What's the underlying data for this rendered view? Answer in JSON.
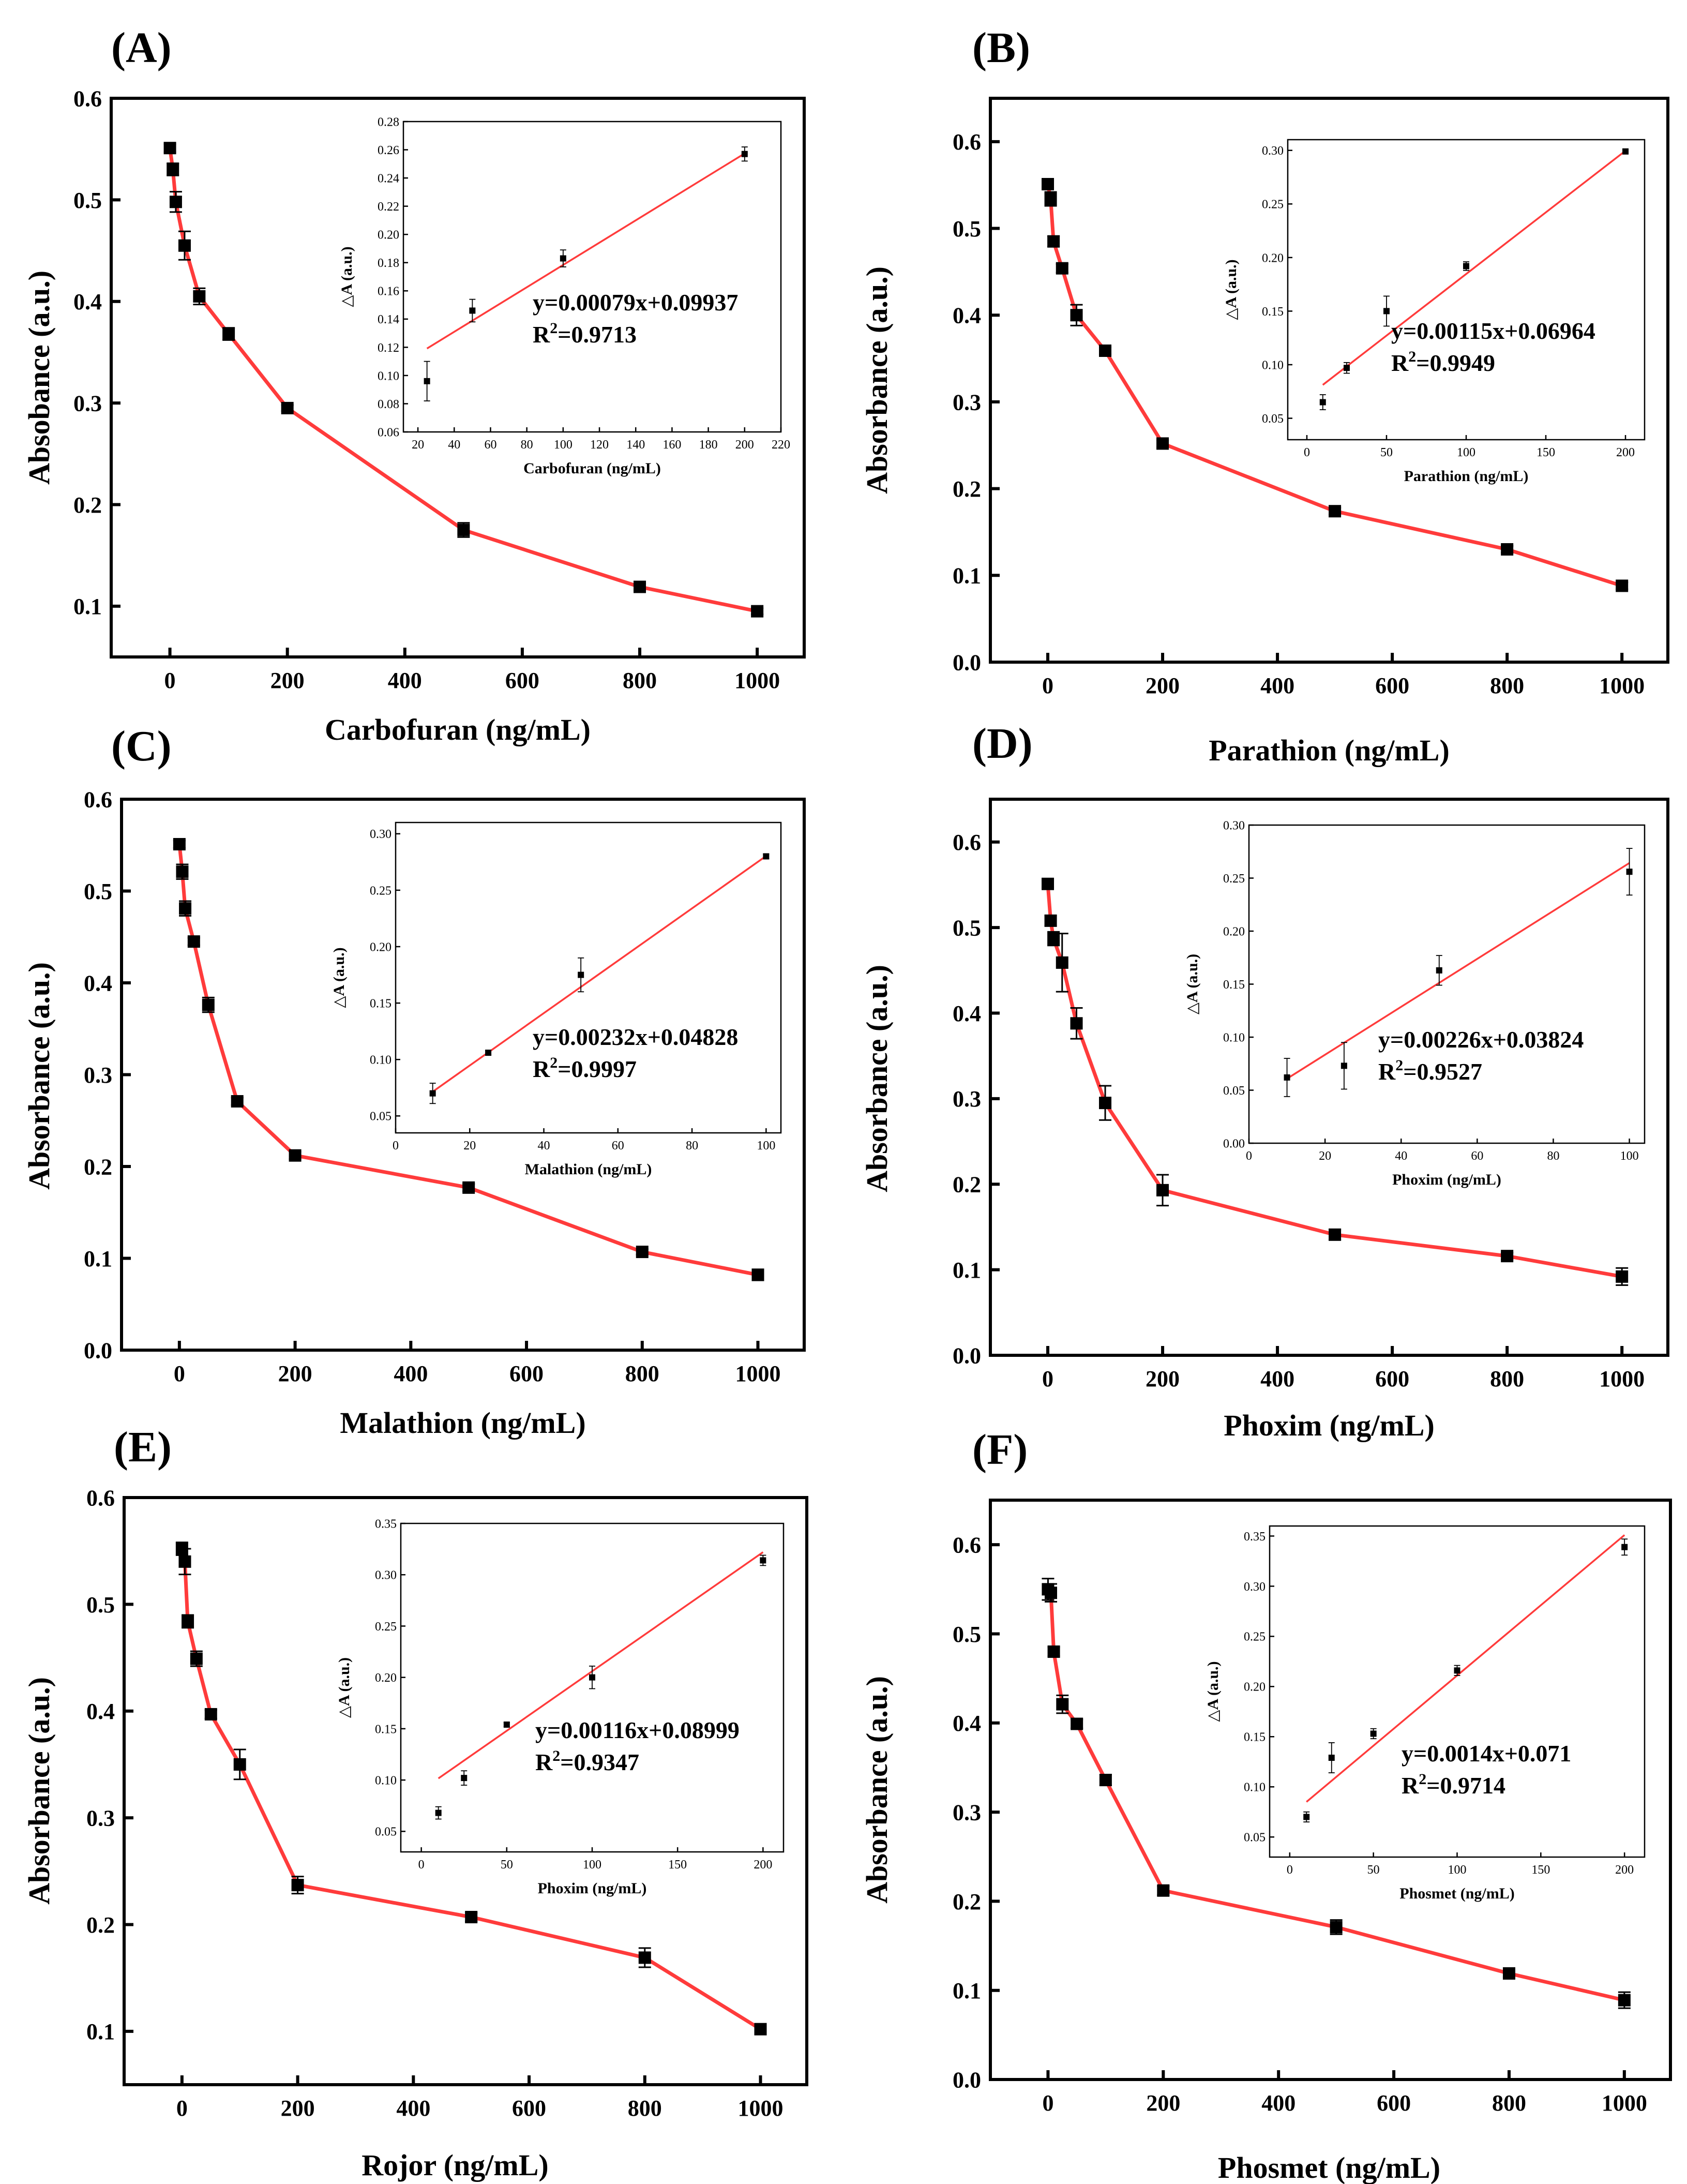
{
  "chart_data": [
    {
      "panel": "(A)",
      "type": "line",
      "xlabel": "Carbofuran (ng/mL)",
      "ylabel": "Absobance (a.u.)",
      "xlim": [
        -100,
        1080
      ],
      "ylim": [
        0.05,
        0.6
      ],
      "xticks": [
        0,
        200,
        400,
        600,
        800,
        1000
      ],
      "yticks": [
        0.1,
        0.2,
        0.3,
        0.4,
        0.5,
        0.6
      ],
      "x": [
        0,
        5,
        10,
        25,
        50,
        100,
        200,
        500,
        800,
        1000
      ],
      "y": [
        0.551,
        0.53,
        0.498,
        0.455,
        0.405,
        0.368,
        0.295,
        0.175,
        0.119,
        0.095
      ],
      "err": [
        0.004,
        0.006,
        0.01,
        0.014,
        0.008,
        0.006,
        0.003,
        0.007,
        0.003,
        0.003
      ],
      "inset": {
        "type": "scatter",
        "xlabel": "Carbofuran (ng/mL)",
        "ylabel": "△A (a.u.)",
        "xlim": [
          12,
          220
        ],
        "ylim": [
          0.06,
          0.28
        ],
        "xticks": [
          20,
          40,
          60,
          80,
          100,
          120,
          140,
          160,
          180,
          200,
          220
        ],
        "yticks": [
          0.06,
          0.08,
          0.1,
          0.12,
          0.14,
          0.16,
          0.18,
          0.2,
          0.22,
          0.24,
          0.26,
          0.28
        ],
        "x": [
          25,
          50,
          100,
          200
        ],
        "y": [
          0.096,
          0.146,
          0.183,
          0.257
        ],
        "err": [
          0.014,
          0.008,
          0.006,
          0.005
        ],
        "fit": {
          "slope": 0.00079,
          "intercept": 0.09937,
          "x_range": [
            25,
            200
          ]
        },
        "equation": "y=0.00079x+0.09937",
        "r2_prefix": "R",
        "r2_sup": "2",
        "r2_value": "=0.9713"
      }
    },
    {
      "panel": "(B)",
      "type": "line",
      "xlabel": "Parathion (ng/mL)",
      "ylabel": "Absorbance (a.u.)",
      "xlim": [
        -100,
        1080
      ],
      "ylim": [
        0.0,
        0.65
      ],
      "xticks": [
        0,
        200,
        400,
        600,
        800,
        1000
      ],
      "yticks": [
        0.0,
        0.1,
        0.2,
        0.3,
        0.4,
        0.5,
        0.6
      ],
      "x": [
        0,
        5,
        10,
        25,
        50,
        100,
        200,
        500,
        800,
        1000
      ],
      "y": [
        0.551,
        0.534,
        0.485,
        0.454,
        0.4,
        0.359,
        0.252,
        0.174,
        0.13,
        0.088
      ],
      "err": [
        0.004,
        0.008,
        0.006,
        0.005,
        0.012,
        0.004,
        0.004,
        0.004,
        0.004,
        0.004
      ],
      "inset": {
        "type": "scatter",
        "xlabel": "Parathion (ng/mL)",
        "ylabel": "△A (a.u.)",
        "xlim": [
          -12,
          212
        ],
        "ylim": [
          0.03,
          0.31
        ],
        "xticks": [
          0,
          50,
          100,
          150,
          200
        ],
        "yticks": [
          0.05,
          0.1,
          0.15,
          0.2,
          0.25,
          0.3
        ],
        "x": [
          10,
          25,
          50,
          100,
          200
        ],
        "y": [
          0.065,
          0.097,
          0.15,
          0.192,
          0.299
        ],
        "err": [
          0.007,
          0.005,
          0.014,
          0.004,
          0.002
        ],
        "fit": {
          "slope": 0.00115,
          "intercept": 0.06964,
          "x_range": [
            10,
            200
          ]
        },
        "equation": "y=0.00115x+0.06964",
        "r2_prefix": "R",
        "r2_sup": "2",
        "r2_value": "=0.9949"
      }
    },
    {
      "panel": "(C)",
      "type": "line",
      "xlabel": "Malathion (ng/mL)",
      "ylabel": "Absorbance (a.u.)",
      "xlim": [
        -100,
        1080
      ],
      "ylim": [
        0.0,
        0.6
      ],
      "xticks": [
        0,
        200,
        400,
        600,
        800,
        1000
      ],
      "yticks": [
        0.0,
        0.1,
        0.2,
        0.3,
        0.4,
        0.5,
        0.6
      ],
      "x": [
        0,
        5,
        10,
        25,
        50,
        100,
        200,
        500,
        800,
        1000
      ],
      "y": [
        0.551,
        0.521,
        0.481,
        0.445,
        0.376,
        0.271,
        0.212,
        0.177,
        0.107,
        0.082
      ],
      "err": [
        0.004,
        0.008,
        0.008,
        0.004,
        0.008,
        0.004,
        0.004,
        0.004,
        0.003,
        0.006
      ],
      "inset": {
        "type": "scatter",
        "xlabel": "Malathion (ng/mL)",
        "ylabel": "△A (a.u.)",
        "xlim": [
          0,
          104
        ],
        "ylim": [
          0.035,
          0.31
        ],
        "xticks": [
          0,
          20,
          40,
          60,
          80,
          100
        ],
        "yticks": [
          0.05,
          0.1,
          0.15,
          0.2,
          0.25,
          0.3
        ],
        "x": [
          10,
          25,
          50,
          100
        ],
        "y": [
          0.07,
          0.106,
          0.175,
          0.28
        ],
        "err": [
          0.009,
          0.002,
          0.015,
          0.002
        ],
        "fit": {
          "slope": 0.00232,
          "intercept": 0.04828,
          "x_range": [
            10,
            100
          ]
        },
        "equation": "y=0.00232x+0.04828",
        "r2_prefix": "R",
        "r2_sup": "2",
        "r2_value": "=0.9997"
      }
    },
    {
      "panel": "(D)",
      "type": "line",
      "xlabel": "Phoxim (ng/mL)",
      "ylabel": "Absorbance (a.u.)",
      "xlim": [
        -100,
        1080
      ],
      "ylim": [
        0.0,
        0.65
      ],
      "xticks": [
        0,
        200,
        400,
        600,
        800,
        1000
      ],
      "yticks": [
        0.0,
        0.1,
        0.2,
        0.3,
        0.4,
        0.5,
        0.6
      ],
      "x": [
        0,
        5,
        10,
        25,
        50,
        100,
        200,
        500,
        800,
        1000
      ],
      "y": [
        0.551,
        0.508,
        0.487,
        0.459,
        0.388,
        0.295,
        0.193,
        0.141,
        0.116,
        0.092
      ],
      "err": [
        0.004,
        0.006,
        0.008,
        0.034,
        0.018,
        0.02,
        0.018,
        0.006,
        0.004,
        0.01
      ],
      "inset": {
        "type": "scatter",
        "xlabel": "Phoxim (ng/mL)",
        "ylabel": "△A (a.u.)",
        "xlim": [
          0,
          104
        ],
        "ylim": [
          0.0,
          0.3
        ],
        "xticks": [
          0,
          20,
          40,
          60,
          80,
          100
        ],
        "yticks": [
          0.0,
          0.05,
          0.1,
          0.15,
          0.2,
          0.25,
          0.3
        ],
        "x": [
          10,
          25,
          50,
          100
        ],
        "y": [
          0.062,
          0.073,
          0.163,
          0.256
        ],
        "err": [
          0.018,
          0.022,
          0.014,
          0.022
        ],
        "fit": {
          "slope": 0.00226,
          "intercept": 0.03824,
          "x_range": [
            10,
            100
          ]
        },
        "equation": "y=0.00226x+0.03824",
        "r2_prefix": "R",
        "r2_sup": "2",
        "r2_value": "=0.9527"
      }
    },
    {
      "panel": "(E)",
      "type": "line",
      "xlabel": "Rojor (ng/mL)",
      "ylabel": "Absorbance (a.u.)",
      "xlim": [
        -100,
        1080
      ],
      "ylim": [
        0.05,
        0.6
      ],
      "xticks": [
        0,
        200,
        400,
        600,
        800,
        1000
      ],
      "yticks": [
        0.1,
        0.2,
        0.3,
        0.4,
        0.5,
        0.6
      ],
      "x": [
        0,
        5,
        10,
        25,
        50,
        100,
        200,
        500,
        800,
        1000
      ],
      "y": [
        0.552,
        0.54,
        0.484,
        0.449,
        0.397,
        0.35,
        0.237,
        0.207,
        0.169,
        0.102
      ],
      "err": [
        0.006,
        0.012,
        0.006,
        0.007,
        0.004,
        0.014,
        0.008,
        0.004,
        0.009,
        0.003
      ],
      "inset": {
        "type": "scatter",
        "xlabel": "Phoxim (ng/mL)",
        "ylabel": "△A (a.u.)",
        "xlim": [
          -12,
          212
        ],
        "ylim": [
          0.03,
          0.35
        ],
        "xticks": [
          0,
          50,
          100,
          150,
          200
        ],
        "yticks": [
          0.05,
          0.1,
          0.15,
          0.2,
          0.25,
          0.3,
          0.35
        ],
        "x": [
          10,
          25,
          50,
          100,
          200
        ],
        "y": [
          0.068,
          0.102,
          0.154,
          0.2,
          0.314
        ],
        "err": [
          0.006,
          0.007,
          0.002,
          0.011,
          0.005
        ],
        "fit": {
          "slope": 0.00116,
          "intercept": 0.08999,
          "x_range": [
            10,
            200
          ]
        },
        "equation": "y=0.00116x+0.08999",
        "r2_prefix": "R",
        "r2_sup": "2",
        "r2_value": "=0.9347"
      }
    },
    {
      "panel": "(F)",
      "type": "line",
      "xlabel": "Phosmet (ng/mL)",
      "ylabel": "Absorbance (a.u.)",
      "xlim": [
        -100,
        1080
      ],
      "ylim": [
        0.0,
        0.65
      ],
      "xticks": [
        0,
        200,
        400,
        600,
        800,
        1000
      ],
      "yticks": [
        0.0,
        0.1,
        0.2,
        0.3,
        0.4,
        0.5,
        0.6
      ],
      "x": [
        0,
        5,
        10,
        25,
        50,
        100,
        200,
        500,
        800,
        1000
      ],
      "y": [
        0.55,
        0.546,
        0.48,
        0.421,
        0.399,
        0.336,
        0.212,
        0.171,
        0.119,
        0.089
      ],
      "err": [
        0.012,
        0.01,
        0.005,
        0.01,
        0.005,
        0.006,
        0.005,
        0.008,
        0.004,
        0.009
      ],
      "inset": {
        "type": "scatter",
        "xlabel": "Phosmet (ng/mL)",
        "ylabel": "△A (a.u.)",
        "xlim": [
          -12,
          212
        ],
        "ylim": [
          0.03,
          0.36
        ],
        "xticks": [
          0,
          50,
          100,
          150,
          200
        ],
        "yticks": [
          0.05,
          0.1,
          0.15,
          0.2,
          0.25,
          0.3,
          0.35
        ],
        "x": [
          10,
          25,
          50,
          100,
          200
        ],
        "y": [
          0.07,
          0.129,
          0.153,
          0.216,
          0.339
        ],
        "err": [
          0.005,
          0.015,
          0.005,
          0.005,
          0.008
        ],
        "fit": {
          "slope": 0.0014,
          "intercept": 0.071,
          "x_range": [
            10,
            200
          ]
        },
        "equation": "y=0.0014x+0.071",
        "r2_prefix": "R",
        "r2_sup": "2",
        "r2_value": "=0.9714"
      }
    }
  ],
  "colors": {
    "line": "#ff3b3b",
    "marker": "#000000",
    "axis": "#000000",
    "background": "#ffffff"
  }
}
